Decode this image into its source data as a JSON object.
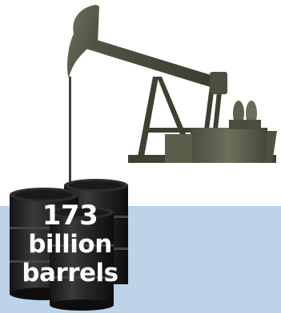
{
  "graphic": {
    "line1": "173",
    "line2": "billion",
    "line3": "barrels"
  },
  "colors": {
    "sky": "#ffffff",
    "water": "#bcd3e8",
    "pump_dark": "#3d4132",
    "pump_light": "#6a6e5a",
    "barrel": "#1e1e1e"
  }
}
